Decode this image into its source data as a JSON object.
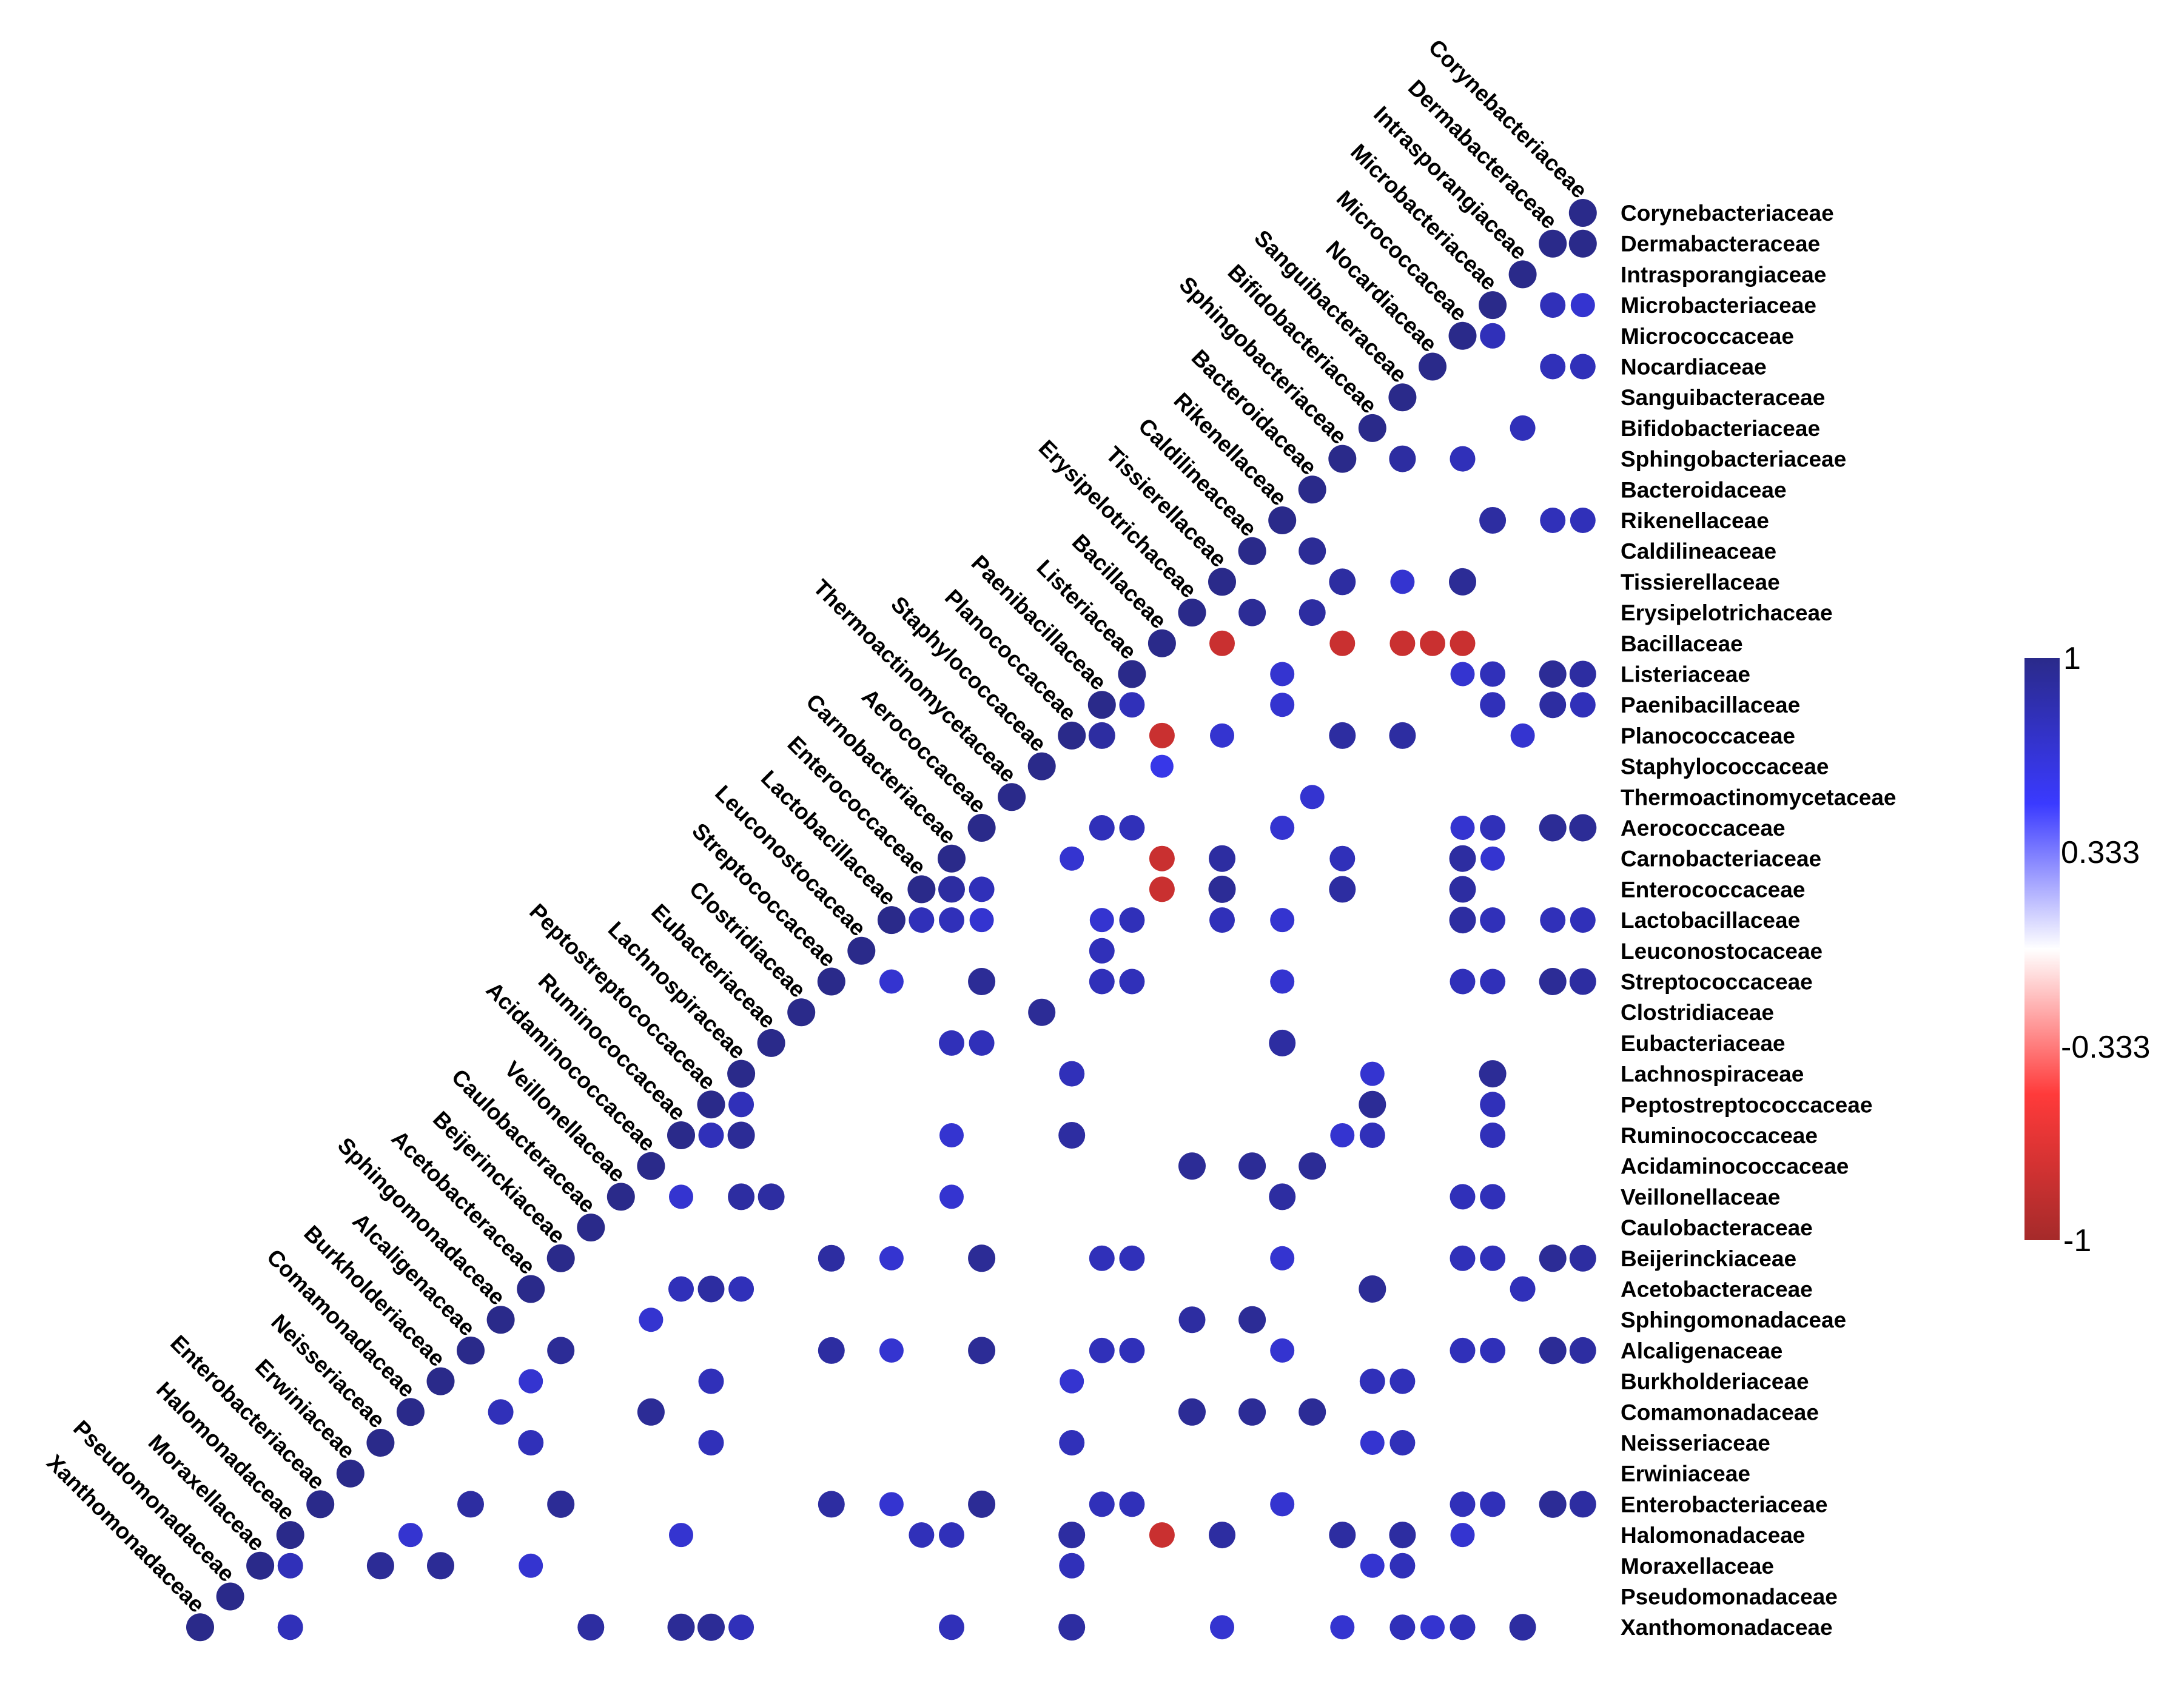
{
  "chart_data": {
    "type": "heatmap",
    "title": "",
    "families": [
      "Corynebacteriaceae",
      "Dermabacteraceae",
      "Intrasporangiaceae",
      "Microbacteriaceae",
      "Micrococcaceae",
      "Nocardiaceae",
      "Sanguibacteraceae",
      "Bifidobacteriaceae",
      "Sphingobacteriaceae",
      "Bacteroidaceae",
      "Rikenellaceae",
      "Caldilineaceae",
      "Tissierellaceae",
      "Erysipelotrichaceae",
      "Bacillaceae",
      "Listeriaceae",
      "Paenibacillaceae",
      "Planococcaceae",
      "Staphylococcaceae",
      "Thermoactinomycetaceae",
      "Aerococcaceae",
      "Carnobacteriaceae",
      "Enterococcaceae",
      "Lactobacillaceae",
      "Leuconostocaceae",
      "Streptococcaceae",
      "Clostridiaceae",
      "Eubacteriaceae",
      "Lachnospiraceae",
      "Peptostreptococcaceae",
      "Ruminococcaceae",
      "Acidaminococcaceae",
      "Veillonellaceae",
      "Caulobacteraceae",
      "Beijerinckiaceae",
      "Acetobacteraceae",
      "Sphingomonadaceae",
      "Alcaligenaceae",
      "Burkholderiaceae",
      "Comamonadaceae",
      "Neisseriaceae",
      "Erwiniaceae",
      "Enterobacteriaceae",
      "Halomonadaceae",
      "Moraxellaceae",
      "Pseudomonadaceae",
      "Xanthomonadaceae"
    ],
    "colorbar": {
      "ticks": [
        "1",
        "0.333",
        "-0.333",
        "-1"
      ],
      "range": [
        -1,
        1
      ],
      "colors": [
        "#a52a2a",
        "#ff3a3a",
        "#ffffff",
        "#3a3aff",
        "#2a2a8a"
      ]
    },
    "cells": [
      [
        0,
        0,
        1
      ],
      [
        0,
        1,
        1
      ],
      [
        1,
        1,
        1
      ],
      [
        2,
        2,
        1
      ],
      [
        0,
        3,
        0.7
      ],
      [
        1,
        3,
        0.8
      ],
      [
        3,
        3,
        1
      ],
      [
        3,
        4,
        0.8
      ],
      [
        4,
        4,
        1
      ],
      [
        0,
        5,
        0.8
      ],
      [
        1,
        5,
        0.8
      ],
      [
        5,
        5,
        1
      ],
      [
        6,
        6,
        1
      ],
      [
        2,
        7,
        0.8
      ],
      [
        7,
        7,
        1
      ],
      [
        4,
        8,
        0.8
      ],
      [
        6,
        8,
        0.9
      ],
      [
        8,
        8,
        1
      ],
      [
        9,
        9,
        1
      ],
      [
        0,
        10,
        0.8
      ],
      [
        1,
        10,
        0.8
      ],
      [
        3,
        10,
        0.9
      ],
      [
        10,
        10,
        1
      ],
      [
        9,
        11,
        0.95
      ],
      [
        11,
        11,
        1
      ],
      [
        4,
        12,
        0.95
      ],
      [
        6,
        12,
        0.7
      ],
      [
        8,
        12,
        0.9
      ],
      [
        12,
        12,
        1
      ],
      [
        9,
        13,
        0.9
      ],
      [
        11,
        13,
        0.95
      ],
      [
        13,
        13,
        1
      ],
      [
        4,
        14,
        -0.8
      ],
      [
        5,
        14,
        -0.8
      ],
      [
        6,
        14,
        -0.8
      ],
      [
        8,
        14,
        -0.8
      ],
      [
        12,
        14,
        -0.8
      ],
      [
        14,
        14,
        1
      ],
      [
        0,
        15,
        0.9
      ],
      [
        1,
        15,
        0.95
      ],
      [
        3,
        15,
        0.8
      ],
      [
        4,
        15,
        0.7
      ],
      [
        10,
        15,
        0.7
      ],
      [
        15,
        15,
        1
      ],
      [
        0,
        16,
        0.8
      ],
      [
        1,
        16,
        0.9
      ],
      [
        3,
        16,
        0.8
      ],
      [
        10,
        16,
        0.7
      ],
      [
        15,
        16,
        0.8
      ],
      [
        16,
        16,
        1
      ],
      [
        2,
        17,
        0.7
      ],
      [
        6,
        17,
        0.9
      ],
      [
        8,
        17,
        0.9
      ],
      [
        12,
        17,
        0.7
      ],
      [
        14,
        17,
        -0.8
      ],
      [
        16,
        17,
        0.9
      ],
      [
        17,
        17,
        1
      ],
      [
        14,
        18,
        0.6
      ],
      [
        18,
        18,
        1
      ],
      [
        9,
        19,
        0.7
      ],
      [
        19,
        19,
        1
      ],
      [
        0,
        20,
        0.95
      ],
      [
        1,
        20,
        0.95
      ],
      [
        3,
        20,
        0.8
      ],
      [
        4,
        20,
        0.7
      ],
      [
        10,
        20,
        0.7
      ],
      [
        15,
        20,
        0.8
      ],
      [
        16,
        20,
        0.8
      ],
      [
        20,
        20,
        1
      ],
      [
        3,
        21,
        0.7
      ],
      [
        4,
        21,
        0.9
      ],
      [
        8,
        21,
        0.8
      ],
      [
        12,
        21,
        0.9
      ],
      [
        14,
        21,
        -0.8
      ],
      [
        17,
        21,
        0.7
      ],
      [
        21,
        21,
        1
      ],
      [
        4,
        22,
        0.9
      ],
      [
        8,
        22,
        0.9
      ],
      [
        12,
        22,
        0.95
      ],
      [
        14,
        22,
        -0.8
      ],
      [
        20,
        22,
        0.8
      ],
      [
        21,
        22,
        0.9
      ],
      [
        22,
        22,
        1
      ],
      [
        0,
        23,
        0.8
      ],
      [
        1,
        23,
        0.8
      ],
      [
        3,
        23,
        0.8
      ],
      [
        4,
        23,
        0.9
      ],
      [
        10,
        23,
        0.7
      ],
      [
        12,
        23,
        0.8
      ],
      [
        15,
        23,
        0.8
      ],
      [
        16,
        23,
        0.7
      ],
      [
        20,
        23,
        0.7
      ],
      [
        21,
        23,
        0.8
      ],
      [
        22,
        23,
        0.8
      ],
      [
        23,
        23,
        1
      ],
      [
        16,
        24,
        0.8
      ],
      [
        24,
        24,
        1
      ],
      [
        0,
        25,
        0.9
      ],
      [
        1,
        25,
        0.95
      ],
      [
        3,
        25,
        0.8
      ],
      [
        4,
        25,
        0.8
      ],
      [
        10,
        25,
        0.7
      ],
      [
        15,
        25,
        0.8
      ],
      [
        16,
        25,
        0.8
      ],
      [
        20,
        25,
        0.95
      ],
      [
        23,
        25,
        0.7
      ],
      [
        25,
        25,
        1
      ],
      [
        18,
        26,
        0.95
      ],
      [
        26,
        26,
        1
      ],
      [
        10,
        27,
        0.9
      ],
      [
        20,
        27,
        0.8
      ],
      [
        21,
        27,
        0.8
      ],
      [
        27,
        27,
        1
      ],
      [
        3,
        28,
        0.95
      ],
      [
        7,
        28,
        0.7
      ],
      [
        17,
        28,
        0.8
      ],
      [
        28,
        28,
        1
      ],
      [
        3,
        29,
        0.8
      ],
      [
        7,
        29,
        0.95
      ],
      [
        28,
        29,
        0.8
      ],
      [
        29,
        29,
        1
      ],
      [
        3,
        30,
        0.8
      ],
      [
        7,
        30,
        0.8
      ],
      [
        8,
        30,
        0.7
      ],
      [
        17,
        30,
        0.9
      ],
      [
        21,
        30,
        0.7
      ],
      [
        28,
        30,
        0.95
      ],
      [
        29,
        30,
        0.8
      ],
      [
        30,
        30,
        1
      ],
      [
        9,
        31,
        0.95
      ],
      [
        11,
        31,
        0.95
      ],
      [
        13,
        31,
        0.95
      ],
      [
        31,
        31,
        1
      ],
      [
        3,
        32,
        0.8
      ],
      [
        4,
        32,
        0.8
      ],
      [
        10,
        32,
        0.9
      ],
      [
        21,
        32,
        0.7
      ],
      [
        27,
        32,
        0.9
      ],
      [
        28,
        32,
        0.9
      ],
      [
        30,
        32,
        0.7
      ],
      [
        32,
        32,
        1
      ],
      [
        33,
        33,
        1
      ],
      [
        0,
        34,
        0.9
      ],
      [
        1,
        34,
        0.95
      ],
      [
        3,
        34,
        0.8
      ],
      [
        4,
        34,
        0.8
      ],
      [
        10,
        34,
        0.7
      ],
      [
        15,
        34,
        0.8
      ],
      [
        16,
        34,
        0.8
      ],
      [
        20,
        34,
        0.95
      ],
      [
        23,
        34,
        0.7
      ],
      [
        25,
        34,
        0.9
      ],
      [
        34,
        34,
        1
      ],
      [
        2,
        35,
        0.8
      ],
      [
        7,
        35,
        0.95
      ],
      [
        28,
        35,
        0.8
      ],
      [
        29,
        35,
        0.9
      ],
      [
        30,
        35,
        0.8
      ],
      [
        35,
        35,
        1
      ],
      [
        11,
        36,
        0.95
      ],
      [
        13,
        36,
        0.9
      ],
      [
        31,
        36,
        0.7
      ],
      [
        36,
        36,
        1
      ],
      [
        0,
        37,
        0.9
      ],
      [
        1,
        37,
        0.95
      ],
      [
        3,
        37,
        0.8
      ],
      [
        4,
        37,
        0.8
      ],
      [
        10,
        37,
        0.7
      ],
      [
        15,
        37,
        0.8
      ],
      [
        16,
        37,
        0.8
      ],
      [
        20,
        37,
        0.95
      ],
      [
        23,
        37,
        0.7
      ],
      [
        25,
        37,
        0.9
      ],
      [
        34,
        37,
        0.95
      ],
      [
        37,
        37,
        1
      ],
      [
        6,
        38,
        0.8
      ],
      [
        7,
        38,
        0.8
      ],
      [
        17,
        38,
        0.7
      ],
      [
        29,
        38,
        0.8
      ],
      [
        35,
        38,
        0.7
      ],
      [
        38,
        38,
        1
      ],
      [
        9,
        39,
        0.95
      ],
      [
        11,
        39,
        0.95
      ],
      [
        13,
        39,
        0.95
      ],
      [
        31,
        39,
        0.95
      ],
      [
        36,
        39,
        0.8
      ],
      [
        39,
        39,
        1
      ],
      [
        6,
        40,
        0.8
      ],
      [
        7,
        40,
        0.7
      ],
      [
        17,
        40,
        0.8
      ],
      [
        29,
        40,
        0.8
      ],
      [
        35,
        40,
        0.8
      ],
      [
        40,
        40,
        1
      ],
      [
        41,
        41,
        1
      ],
      [
        0,
        42,
        0.9
      ],
      [
        1,
        42,
        0.95
      ],
      [
        3,
        42,
        0.8
      ],
      [
        4,
        42,
        0.8
      ],
      [
        10,
        42,
        0.7
      ],
      [
        15,
        42,
        0.8
      ],
      [
        16,
        42,
        0.8
      ],
      [
        20,
        42,
        0.95
      ],
      [
        23,
        42,
        0.7
      ],
      [
        25,
        42,
        0.9
      ],
      [
        34,
        42,
        0.95
      ],
      [
        37,
        42,
        0.9
      ],
      [
        42,
        42,
        1
      ],
      [
        4,
        43,
        0.7
      ],
      [
        6,
        43,
        0.9
      ],
      [
        8,
        43,
        0.9
      ],
      [
        12,
        43,
        0.9
      ],
      [
        14,
        43,
        -0.8
      ],
      [
        17,
        43,
        0.9
      ],
      [
        21,
        43,
        0.8
      ],
      [
        22,
        43,
        0.8
      ],
      [
        30,
        43,
        0.7
      ],
      [
        39,
        43,
        0.7
      ],
      [
        43,
        43,
        1
      ],
      [
        6,
        44,
        0.8
      ],
      [
        7,
        44,
        0.7
      ],
      [
        17,
        44,
        0.8
      ],
      [
        35,
        44,
        0.7
      ],
      [
        38,
        44,
        0.95
      ],
      [
        40,
        44,
        0.95
      ],
      [
        43,
        44,
        0.8
      ],
      [
        44,
        44,
        1
      ],
      [
        45,
        45,
        1
      ],
      [
        2,
        46,
        0.9
      ],
      [
        4,
        46,
        0.8
      ],
      [
        5,
        46,
        0.7
      ],
      [
        6,
        46,
        0.8
      ],
      [
        8,
        46,
        0.7
      ],
      [
        12,
        46,
        0.7
      ],
      [
        17,
        46,
        0.9
      ],
      [
        21,
        46,
        0.8
      ],
      [
        28,
        46,
        0.8
      ],
      [
        29,
        46,
        0.95
      ],
      [
        30,
        46,
        0.95
      ],
      [
        33,
        46,
        0.9
      ],
      [
        43,
        46,
        0.8
      ],
      [
        46,
        46,
        1
      ]
    ]
  }
}
